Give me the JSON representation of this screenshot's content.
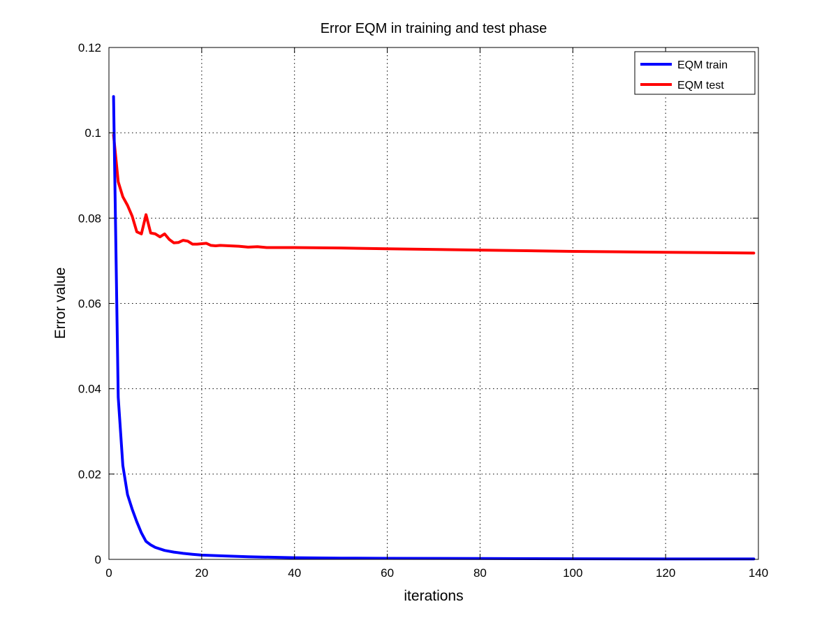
{
  "chart_data": {
    "type": "line",
    "title": "Error EQM in training and test phase",
    "xlabel": "iterations",
    "ylabel": "Error value",
    "xlim": [
      0,
      140
    ],
    "ylim": [
      0,
      0.12
    ],
    "xticks": [
      0,
      20,
      40,
      60,
      80,
      100,
      120,
      140
    ],
    "yticks": [
      0,
      0.02,
      0.04,
      0.06,
      0.08,
      0.1,
      0.12
    ],
    "xtick_labels": [
      "0",
      "20",
      "40",
      "60",
      "80",
      "100",
      "120",
      "140"
    ],
    "ytick_labels": [
      "0",
      "0.02",
      "0.04",
      "0.06",
      "0.08",
      "0.1",
      "0.12"
    ],
    "grid": true,
    "grid_style": "dotted",
    "legend_position": "top-right",
    "series": [
      {
        "name": "EQM train",
        "color": "#0000ff",
        "x": [
          1,
          2,
          3,
          4,
          5,
          6,
          7,
          8,
          9,
          10,
          12,
          14,
          16,
          18,
          20,
          25,
          30,
          40,
          50,
          60,
          80,
          100,
          120,
          139
        ],
        "y": [
          0.1085,
          0.038,
          0.022,
          0.0152,
          0.0118,
          0.0088,
          0.0062,
          0.0042,
          0.0034,
          0.0028,
          0.0021,
          0.0017,
          0.0014,
          0.0012,
          0.001,
          0.0008,
          0.0006,
          0.0004,
          0.0003,
          0.00025,
          0.0002,
          0.00015,
          0.0001,
          0.0001
        ]
      },
      {
        "name": "EQM test",
        "color": "#ff0000",
        "x": [
          1,
          2,
          3,
          4,
          5,
          6,
          7,
          8,
          9,
          10,
          11,
          12,
          13,
          14,
          15,
          16,
          17,
          18,
          19,
          20,
          21,
          22,
          23,
          24,
          26,
          28,
          30,
          32,
          34,
          40,
          50,
          60,
          80,
          100,
          120,
          139
        ],
        "y": [
          0.0995,
          0.0885,
          0.085,
          0.083,
          0.0805,
          0.0768,
          0.0763,
          0.0808,
          0.0765,
          0.0763,
          0.0756,
          0.0763,
          0.075,
          0.0742,
          0.0743,
          0.0748,
          0.0746,
          0.0739,
          0.0739,
          0.074,
          0.0741,
          0.0736,
          0.0735,
          0.0736,
          0.0735,
          0.0734,
          0.0732,
          0.0733,
          0.0731,
          0.0731,
          0.073,
          0.0728,
          0.0725,
          0.0722,
          0.072,
          0.0718
        ]
      }
    ]
  }
}
